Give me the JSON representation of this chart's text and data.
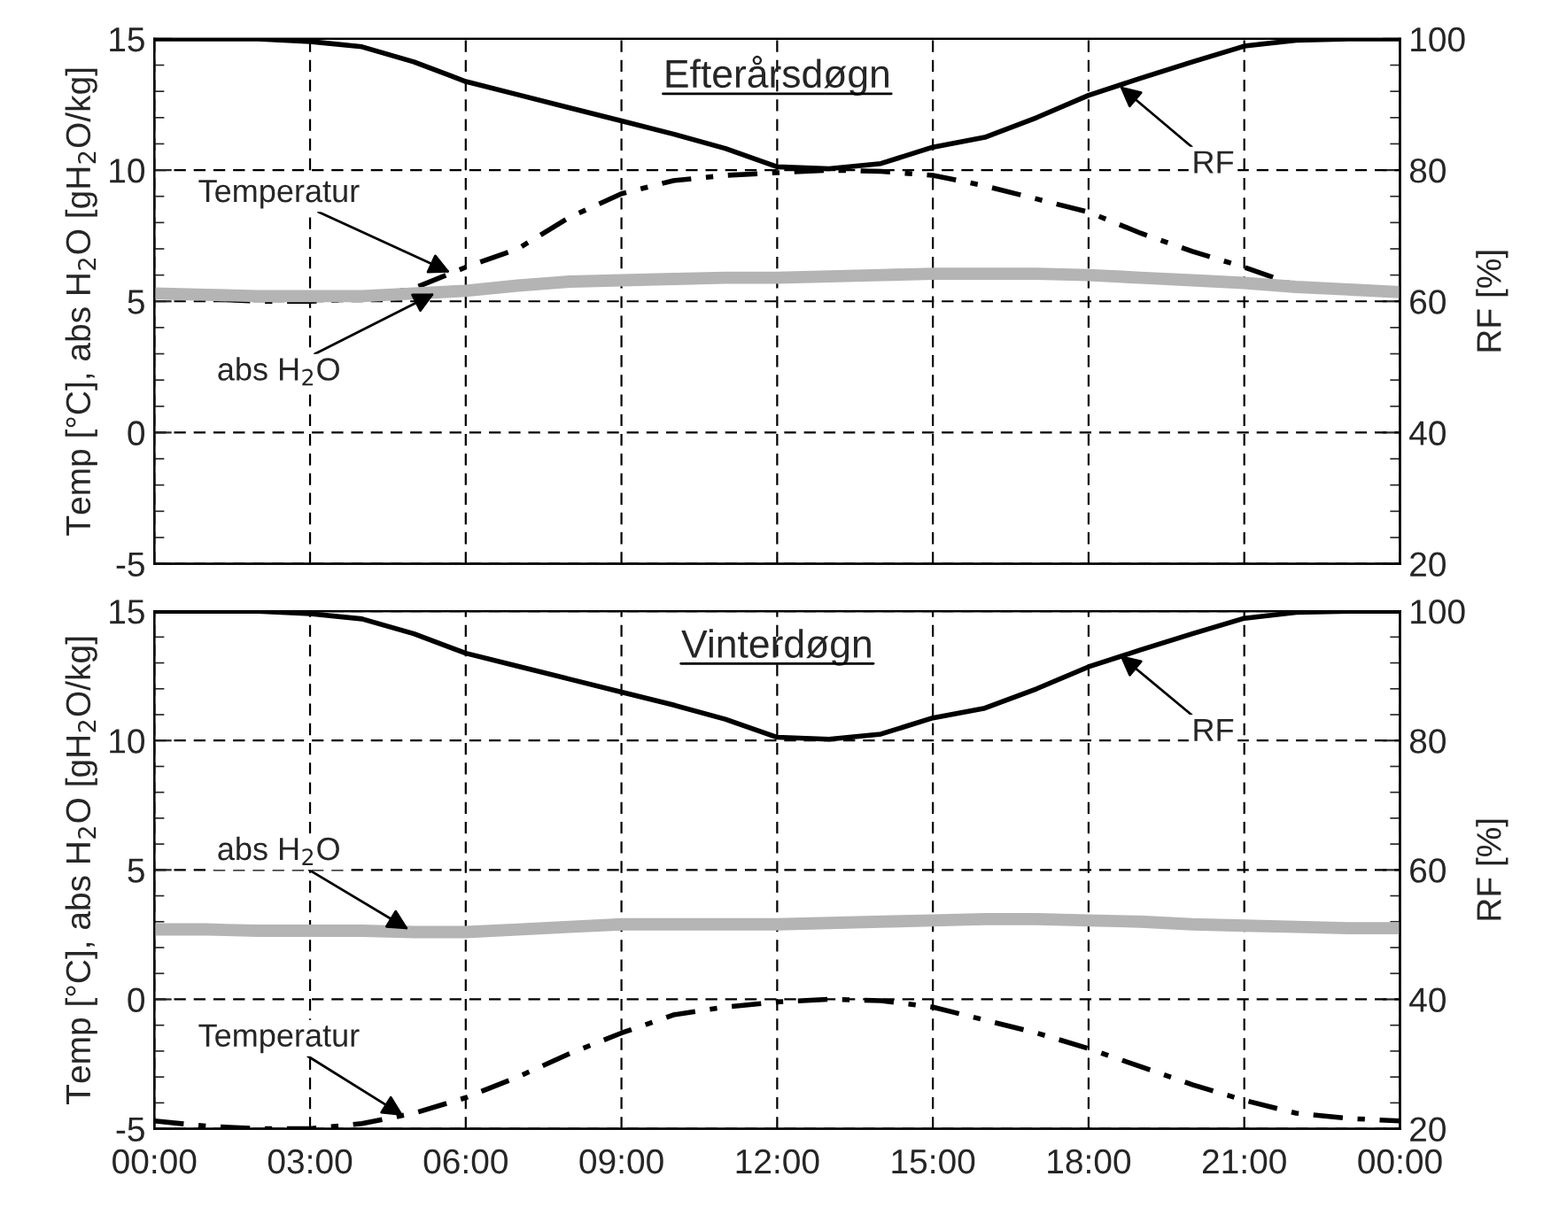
{
  "chart_data": [
    {
      "type": "line",
      "title": "Efterårsdøgn",
      "ylabel": "Temp [°C], abs H$_{2}$O [gH$_{2}$O/kg]",
      "y2label": "RF [%]",
      "x": [
        0,
        1,
        2,
        3,
        4,
        5,
        6,
        7,
        8,
        9,
        10,
        11,
        12,
        13,
        14,
        15,
        16,
        17,
        18,
        19,
        20,
        21,
        22,
        23,
        24
      ],
      "series": [
        {
          "color": "#000000",
          "axis": "y2",
          "line_style": "solid",
          "values": [
            100,
            100,
            100,
            99.6,
            98.8,
            96.5,
            93.5,
            91.5,
            89.5,
            87.5,
            85.5,
            83.3,
            80.5,
            80.2,
            81,
            83.5,
            85,
            88,
            91.4,
            94,
            96.5,
            98.9,
            99.8,
            100,
            100
          ]
        },
        {
          "color": "#000000",
          "line_style": "dashdot",
          "values": [
            5.2,
            5.1,
            5.0,
            5.0,
            5.1,
            5.5,
            6.3,
            7.0,
            8.2,
            9.1,
            9.6,
            9.8,
            9.9,
            10,
            9.95,
            9.8,
            9.4,
            8.9,
            8.4,
            7.6,
            6.9,
            6.3,
            5.6,
            5.4,
            5.3
          ]
        },
        {
          "color": "#b4b4b4",
          "line_style": "solid",
          "values": [
            5.3,
            5.25,
            5.2,
            5.2,
            5.2,
            5.3,
            5.4,
            5.6,
            5.75,
            5.8,
            5.85,
            5.9,
            5.9,
            5.95,
            6.0,
            6.05,
            6.05,
            6.05,
            6.0,
            5.9,
            5.8,
            5.7,
            5.55,
            5.45,
            5.35
          ]
        }
      ],
      "annotations": [
        {
          "text": "Temperatur",
          "x": 5.7,
          "y": 6.1
        },
        {
          "text": "abs H$_{2}$O",
          "x": 5.4,
          "y": 5.3
        },
        {
          "text": "RF",
          "x": 18.6,
          "y": 13.2
        }
      ],
      "xlim": [
        0,
        24
      ],
      "ylim": [
        -5,
        15
      ],
      "y2lim": [
        20,
        100
      ],
      "xticks": [
        {
          "value": 0,
          "label": null
        },
        {
          "value": 3,
          "label": null
        },
        {
          "value": 6,
          "label": null
        },
        {
          "value": 9,
          "label": null
        },
        {
          "value": 12,
          "label": null
        },
        {
          "value": 15,
          "label": null
        },
        {
          "value": 18,
          "label": null
        },
        {
          "value": 21,
          "label": null
        },
        {
          "value": 24,
          "label": null
        }
      ],
      "yticks": [
        -5,
        0,
        5,
        10,
        15
      ],
      "y2ticks": [
        20,
        40,
        60,
        80,
        100
      ],
      "grid": true,
      "tick_labels": "y"
    },
    {
      "type": "line",
      "title": "Vinterdøgn",
      "ylabel": "Temp [°C], abs H$_{2}$O [gH$_{2}$O/kg]",
      "y2label": "RF [%]",
      "x": [
        0,
        1,
        2,
        3,
        4,
        5,
        6,
        7,
        8,
        9,
        10,
        11,
        12,
        13,
        14,
        15,
        16,
        17,
        18,
        19,
        20,
        21,
        22,
        23,
        24
      ],
      "series": [
        {
          "color": "#000000",
          "axis": "y2",
          "line_style": "solid",
          "values": [
            100,
            100,
            100,
            99.6,
            98.8,
            96.5,
            93.5,
            91.5,
            89.5,
            87.5,
            85.5,
            83.3,
            80.5,
            80.2,
            81,
            83.5,
            85,
            88,
            91.4,
            94,
            96.5,
            98.9,
            99.8,
            100,
            100
          ]
        },
        {
          "color": "#000000",
          "line_style": "dashdot",
          "values": [
            -4.7,
            -4.9,
            -5.0,
            -5.0,
            -4.8,
            -4.4,
            -3.8,
            -3.0,
            -2.1,
            -1.3,
            -0.6,
            -0.3,
            -0.1,
            0,
            -0.05,
            -0.3,
            -0.8,
            -1.3,
            -1.9,
            -2.6,
            -3.3,
            -3.9,
            -4.4,
            -4.6,
            -4.7
          ]
        },
        {
          "color": "#b4b4b4",
          "line_style": "solid",
          "values": [
            2.7,
            2.7,
            2.65,
            2.65,
            2.65,
            2.6,
            2.6,
            2.7,
            2.8,
            2.9,
            2.9,
            2.9,
            2.9,
            2.95,
            3.0,
            3.05,
            3.1,
            3.1,
            3.05,
            3.0,
            2.9,
            2.85,
            2.8,
            2.75,
            2.75
          ]
        }
      ],
      "annotations": [
        {
          "text": "abs H$_{2}$O",
          "x": 4.9,
          "y": 2.7
        },
        {
          "text": "Temperatur",
          "x": 4.8,
          "y": -4.5
        },
        {
          "text": "RF",
          "x": 18.6,
          "y": 13.3
        }
      ],
      "xlim": [
        0,
        24
      ],
      "ylim": [
        -5,
        15
      ],
      "y2lim": [
        20,
        100
      ],
      "xticks": [
        {
          "value": 0,
          "label": "00:00"
        },
        {
          "value": 3,
          "label": "03:00"
        },
        {
          "value": 6,
          "label": "06:00"
        },
        {
          "value": 9,
          "label": "09:00"
        },
        {
          "value": 12,
          "label": "12:00"
        },
        {
          "value": 15,
          "label": "15:00"
        },
        {
          "value": 18,
          "label": "18:00"
        },
        {
          "value": 21,
          "label": "21:00"
        },
        {
          "value": 24,
          "label": "00:00"
        }
      ],
      "yticks": [
        -5,
        0,
        5,
        10,
        15
      ],
      "y2ticks": [
        20,
        40,
        60,
        80,
        100
      ],
      "grid": true
    }
  ]
}
